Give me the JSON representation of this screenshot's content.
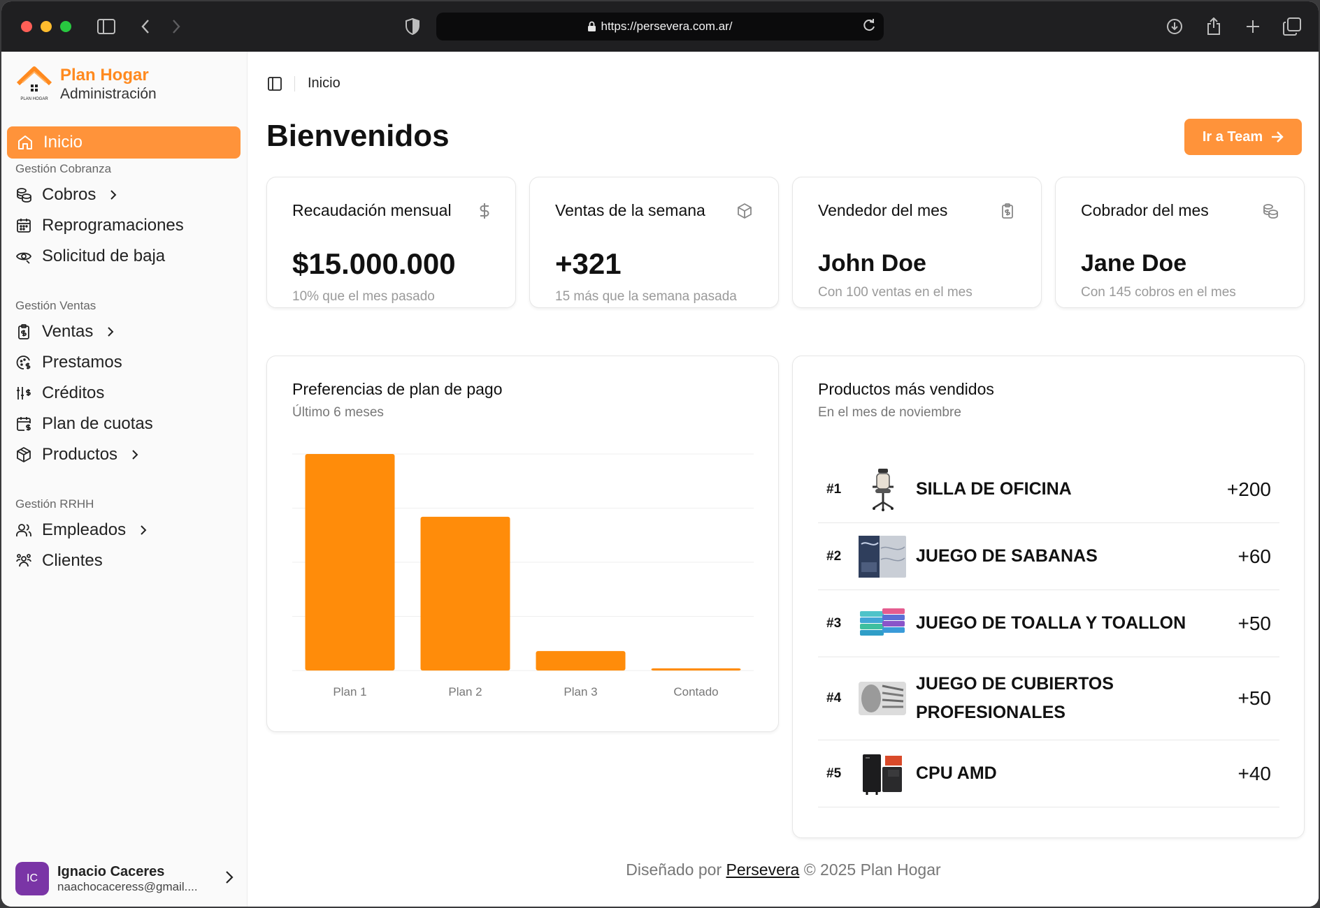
{
  "browser": {
    "url": "https://persevera.com.ar/"
  },
  "brand": {
    "title": "Plan Hogar",
    "subtitle": "Administración",
    "logo_text": "PLAN HOGAR"
  },
  "sidebar": {
    "active": {
      "label": "Inicio",
      "icon": "home-icon"
    },
    "sections": [
      {
        "title": "Gestión Cobranza",
        "items": [
          {
            "label": "Cobros",
            "icon": "coins-icon",
            "chevron": true
          },
          {
            "label": "Reprogramaciones",
            "icon": "calendar-icon",
            "chevron": false
          },
          {
            "label": "Solicitud de baja",
            "icon": "eye-icon",
            "chevron": false
          }
        ]
      },
      {
        "title": "Gestión Ventas",
        "items": [
          {
            "label": "Ventas",
            "icon": "receipt-icon",
            "chevron": true
          },
          {
            "label": "Prestamos",
            "icon": "loan-icon",
            "chevron": false
          },
          {
            "label": "Créditos",
            "icon": "sliders-icon",
            "chevron": false
          },
          {
            "label": "Plan de cuotas",
            "icon": "calendar-money-icon",
            "chevron": false
          },
          {
            "label": "Productos",
            "icon": "box-icon",
            "chevron": true
          }
        ]
      },
      {
        "title": "Gestión RRHH",
        "items": [
          {
            "label": "Empleados",
            "icon": "users-icon",
            "chevron": true
          },
          {
            "label": "Clientes",
            "icon": "group-icon",
            "chevron": false
          }
        ]
      }
    ],
    "user": {
      "initials": "IC",
      "name": "Ignacio Caceres",
      "email": "naachocaceress@gmail...."
    }
  },
  "header": {
    "breadcrumb": "Inicio",
    "title": "Bienvenidos",
    "team_button": "Ir a Team"
  },
  "stats": [
    {
      "label": "Recaudación mensual",
      "value": "$15.000.000",
      "hint": "10% que el mes pasado",
      "icon": "dollar-icon"
    },
    {
      "label": "Ventas de la semana",
      "value": "+321",
      "hint": "15 más que la semana pasada",
      "icon": "box-icon"
    },
    {
      "label": "Vendedor del mes",
      "value": "John Doe",
      "hint": "Con 100 ventas en el mes",
      "icon": "clipboard-dollar-icon"
    },
    {
      "label": "Cobrador del mes",
      "value": "Jane Doe",
      "hint": "Con 145 cobros en el mes",
      "icon": "coins-icon"
    }
  ],
  "payment_chart": {
    "title": "Preferencias de plan de pago",
    "subtitle": "Último 6 meses"
  },
  "chart_data": {
    "type": "bar",
    "categories": [
      "Plan 1",
      "Plan 2",
      "Plan 3",
      "Contado"
    ],
    "values": [
      100,
      71,
      9,
      1
    ],
    "ylim": [
      0,
      100
    ],
    "grid": true,
    "color": "#ff8c0a"
  },
  "products": {
    "title": "Productos más vendidos",
    "subtitle": "En el mes de noviembre",
    "items": [
      {
        "rank": "#1",
        "name": "SILLA DE OFICINA",
        "value": "+200",
        "icon": "office-chair-icon"
      },
      {
        "rank": "#2",
        "name": "JUEGO DE SABANAS",
        "value": "+60",
        "icon": "bedsheet-icon"
      },
      {
        "rank": "#3",
        "name": "JUEGO DE TOALLA Y TOALLON",
        "value": "+50",
        "icon": "towels-icon"
      },
      {
        "rank": "#4",
        "name": "JUEGO DE CUBIERTOS PROFESIONALES",
        "value": "+50",
        "icon": "cutlery-icon"
      },
      {
        "rank": "#5",
        "name": "CPU AMD",
        "value": "+40",
        "icon": "cpu-tower-icon"
      }
    ]
  },
  "footer": {
    "prefix": "Diseñado por",
    "link": "Persevera",
    "suffix": "© 2025 Plan Hogar"
  },
  "colors": {
    "accent": "#ff933a",
    "bar": "#ff8c0a",
    "brand": "#ff8a1f"
  }
}
